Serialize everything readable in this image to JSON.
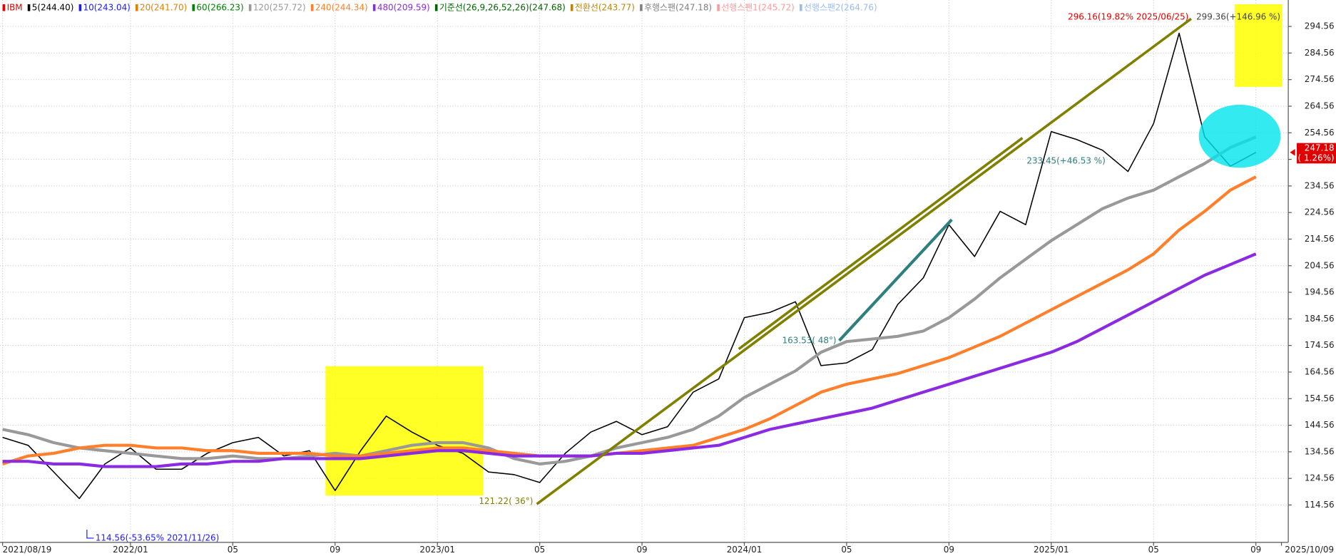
{
  "chart_data": {
    "type": "line",
    "categories": [
      "2021/08/19",
      null,
      null,
      null,
      null,
      "2022/01",
      null,
      null,
      null,
      "05",
      null,
      null,
      null,
      "09",
      null,
      null,
      null,
      "2023/01",
      null,
      null,
      null,
      "05",
      null,
      null,
      null,
      "09",
      null,
      null,
      null,
      "2024/01",
      null,
      null,
      null,
      "05",
      null,
      null,
      null,
      "09",
      null,
      null,
      null,
      "2025/01",
      null,
      null,
      null,
      "05",
      null,
      null,
      null,
      "09",
      "2025/10/09"
    ],
    "ylim": [
      100.5,
      304.5
    ],
    "yticks": [
      114.56,
      124.56,
      134.56,
      144.56,
      154.56,
      164.56,
      174.56,
      184.56,
      194.56,
      204.56,
      214.56,
      224.56,
      234.56,
      244.56,
      254.56,
      264.56,
      274.56,
      284.56,
      294.56
    ],
    "grid": true,
    "series": [
      {
        "name": "IBM",
        "color": "#e00000"
      },
      {
        "name": "5(244.40)",
        "color": "#000000",
        "values": [
          140,
          137,
          127,
          117,
          130,
          136,
          128,
          128,
          134,
          138,
          140,
          133,
          135,
          120,
          135,
          148,
          142,
          137,
          134,
          127,
          126,
          123,
          134,
          142,
          146,
          141,
          144,
          157,
          162,
          185,
          187,
          191,
          167,
          168,
          173,
          190,
          200,
          220,
          208,
          225,
          220,
          255,
          252,
          248,
          240,
          258,
          292,
          253,
          242,
          247.18,
          null
        ]
      },
      {
        "name": "10(243.04)",
        "color": "#1a1aff"
      },
      {
        "name": "20(241.70)",
        "color": "#e08000"
      },
      {
        "name": "60(266.23)",
        "color": "#008000"
      },
      {
        "name": "120(257.72)",
        "color": "#999999",
        "values": [
          143,
          141,
          138,
          136,
          135,
          134,
          133,
          132,
          132,
          133,
          132,
          132,
          133,
          134,
          133,
          135,
          137,
          138,
          138,
          136,
          132,
          130,
          131,
          133,
          136,
          138,
          140,
          143,
          148,
          155,
          160,
          165,
          172,
          176,
          177,
          178,
          180,
          185,
          192,
          200,
          207,
          214,
          220,
          226,
          230,
          233,
          238,
          243,
          249,
          253,
          null
        ]
      },
      {
        "name": "240(244.34)",
        "color": "#ff7f2a",
        "values": [
          130,
          133,
          134,
          136,
          137,
          137,
          136,
          136,
          135,
          135,
          134,
          134,
          134,
          133,
          133,
          134,
          135,
          136,
          136,
          135,
          134,
          133,
          133,
          133,
          134,
          135,
          136,
          137,
          140,
          143,
          147,
          152,
          157,
          160,
          162,
          164,
          167,
          170,
          174,
          178,
          183,
          188,
          193,
          198,
          203,
          209,
          218,
          225,
          233,
          238,
          null
        ]
      },
      {
        "name": "480(209.59)",
        "color": "#8a2be2",
        "values": [
          131,
          131,
          130,
          130,
          129,
          129,
          129,
          130,
          130,
          131,
          131,
          132,
          132,
          132,
          132,
          133,
          134,
          135,
          135,
          134,
          133,
          133,
          133,
          133,
          134,
          134,
          135,
          136,
          137,
          140,
          143,
          145,
          147,
          149,
          151,
          154,
          157,
          160,
          163,
          166,
          169,
          172,
          176,
          181,
          186,
          191,
          196,
          201,
          205,
          209,
          null
        ]
      },
      {
        "name": "기준선(26,9,26,52,26)(247.68)",
        "color": "#006400"
      },
      {
        "name": "전환선(243.77)",
        "color": "#b8860b"
      },
      {
        "name": "후행스팬(247.18)",
        "color": "#808080"
      },
      {
        "name": "선행스팬1(245.72)",
        "color": "#ff9999"
      },
      {
        "name": "선행스팬2(264.76)",
        "color": "#99bbee"
      }
    ],
    "current_price": {
      "value": 247.18,
      "change": "( 1.26%)"
    },
    "annotations": [
      "296.16(19.82% 2025/06/25)",
      "299.36(+146.96 %)",
      "114.56(-53.65% 2021/11/26)",
      "121.22( 36°)",
      "163.53( 48°)",
      "233.45(+46.53 %)"
    ]
  }
}
